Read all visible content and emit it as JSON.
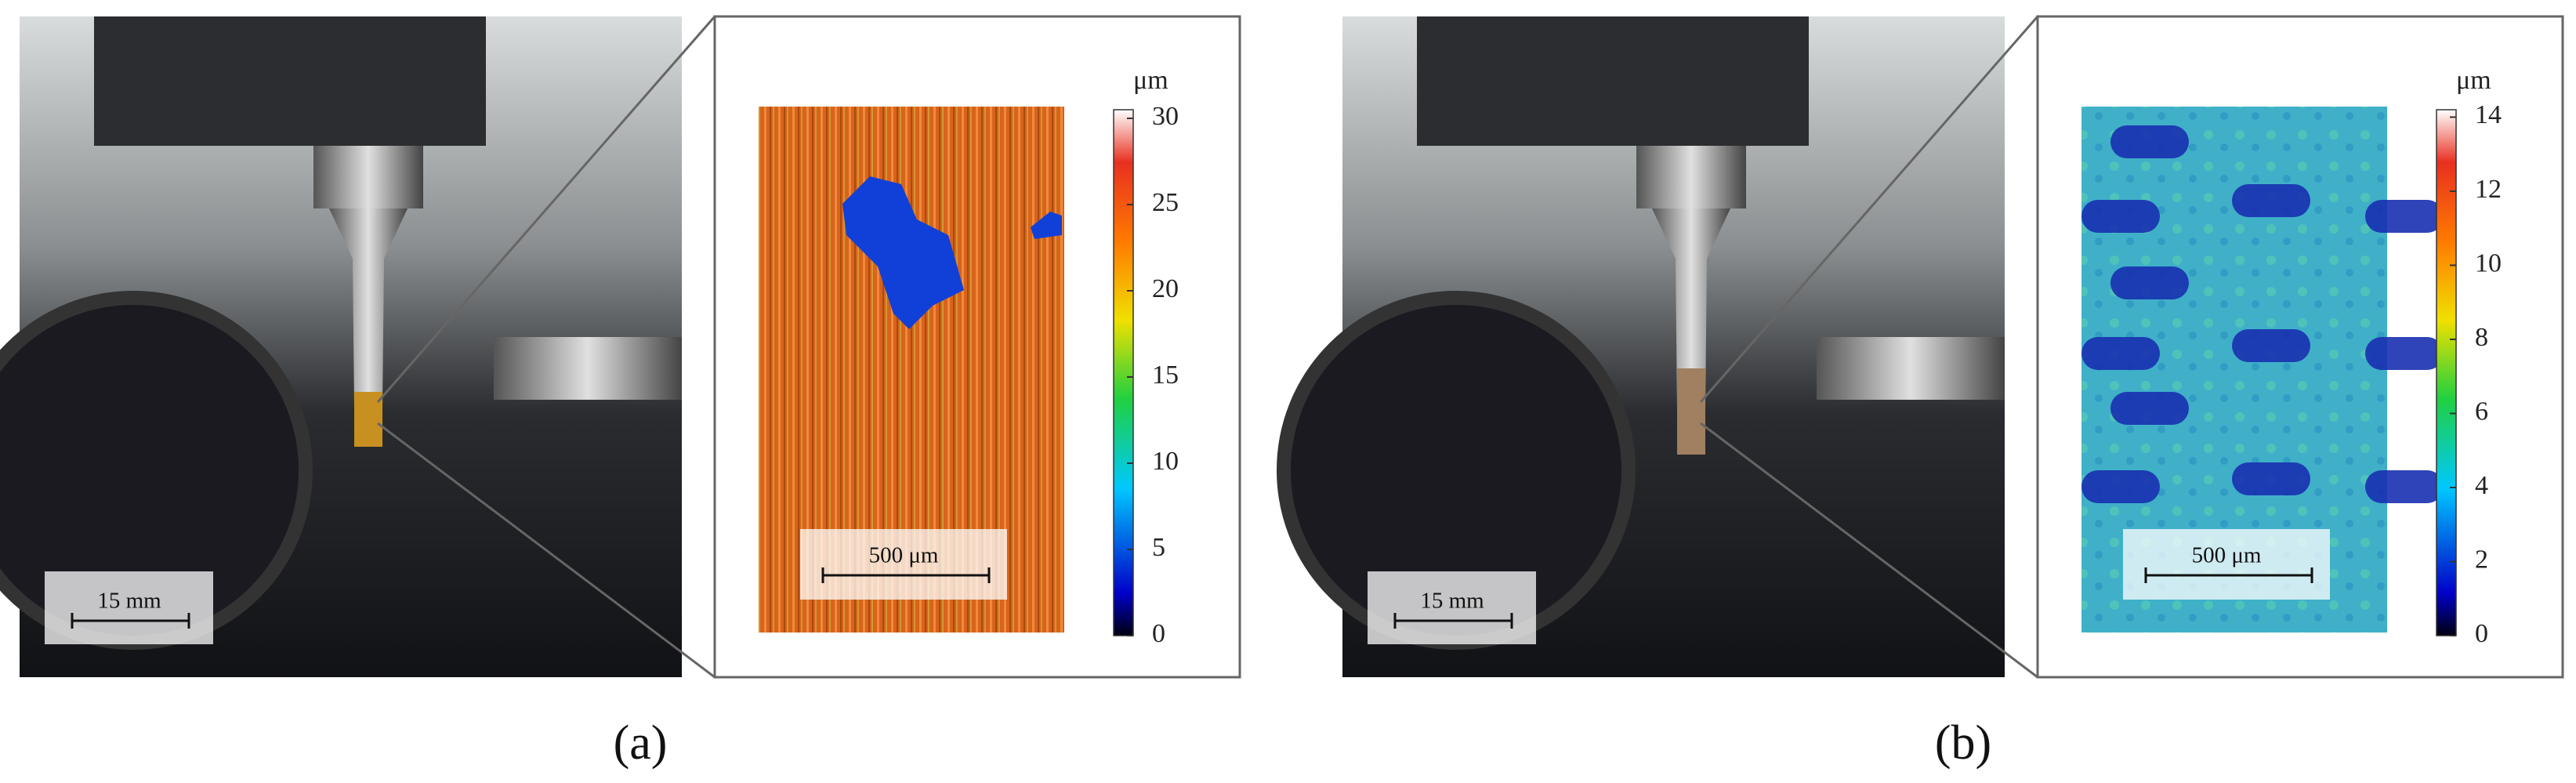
{
  "panels": [
    {
      "caption": "(a)",
      "photo_scale": "15 mm",
      "inset_scale": "500 μm",
      "colorbar": {
        "unit": "μm",
        "lim": [
          0,
          30.5
        ],
        "ticks": [
          0,
          5,
          10,
          15,
          20,
          25,
          30
        ]
      }
    },
    {
      "caption": "(b)",
      "photo_scale": "15 mm",
      "inset_scale": "500 μm",
      "colorbar": {
        "unit": "μm",
        "lim": [
          0,
          14.2
        ],
        "ticks": [
          0,
          2,
          4,
          6,
          8,
          10,
          12,
          14
        ]
      }
    }
  ]
}
